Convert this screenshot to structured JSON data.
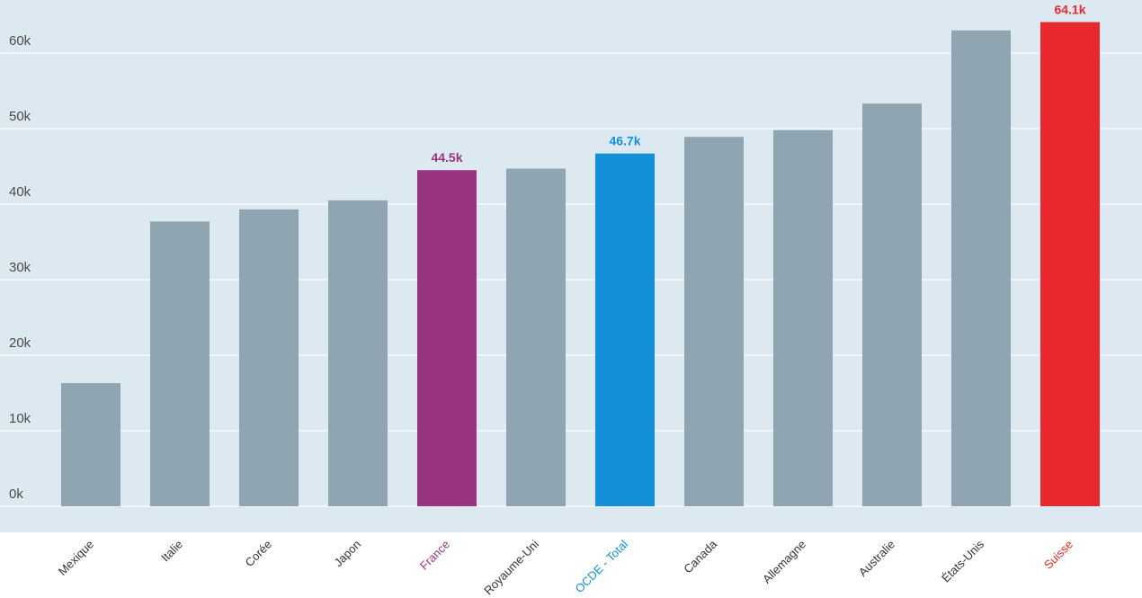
{
  "chart_data": {
    "type": "bar",
    "categories": [
      "Mexique",
      "Italie",
      "Corée",
      "Japon",
      "France",
      "Royaume-Uni",
      "OCDE - Total",
      "Canada",
      "Allemagne",
      "Australie",
      "États-Unis",
      "Suisse"
    ],
    "values": [
      16.3,
      37.7,
      39.3,
      40.5,
      44.5,
      44.7,
      46.7,
      48.9,
      49.8,
      53.3,
      63.0,
      64.1
    ],
    "highlights": {
      "France": "#993482",
      "OCDE - Total": "#1490db",
      "Suisse": "#e8292f"
    },
    "data_labels": {
      "France": "44.5k",
      "OCDE - Total": "46.7k",
      "Suisse": "64.1k"
    },
    "bar_color": "#8fa5b1",
    "plot_background": "#dde9f1",
    "y_ticks": [
      "0k",
      "10k",
      "20k",
      "30k",
      "40k",
      "50k",
      "60k"
    ],
    "ylim": [
      0,
      65
    ],
    "grid": true,
    "xlabel": "",
    "ylabel": ""
  }
}
